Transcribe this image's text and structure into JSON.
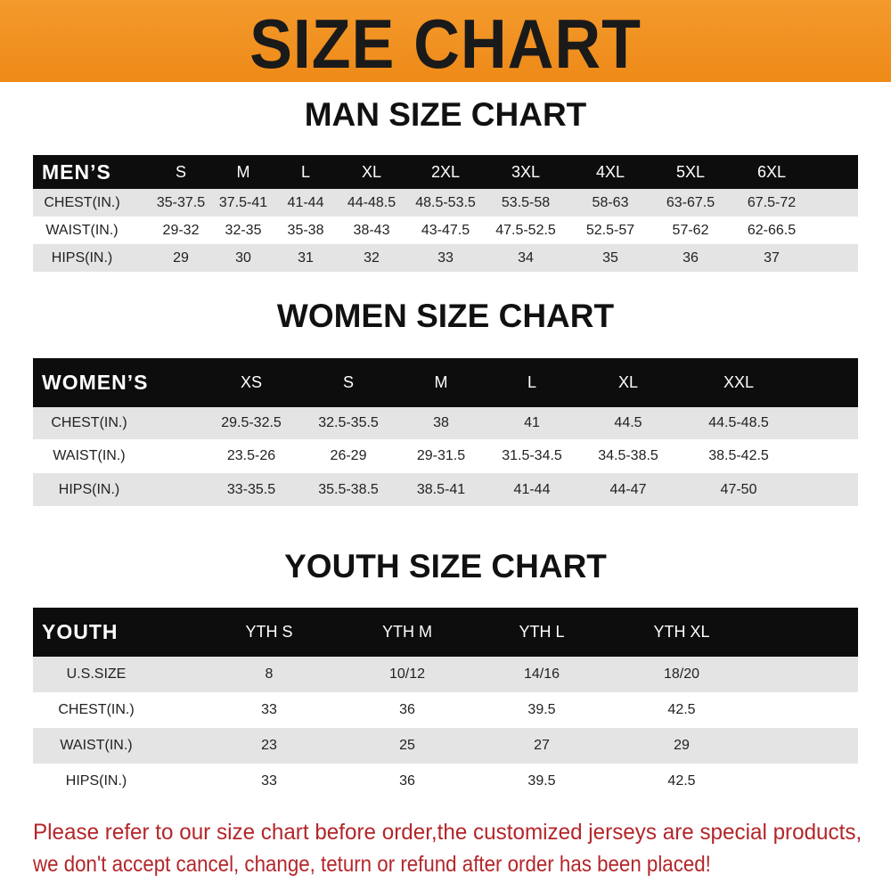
{
  "banner": {
    "title": "SIZE CHART",
    "color": "#f0901f"
  },
  "men": {
    "title": "MAN SIZE CHART",
    "headers": [
      "MEN’S",
      "S",
      "M",
      "L",
      "XL",
      "2XL",
      "3XL",
      "4XL",
      "5XL",
      "6XL"
    ],
    "rows": [
      [
        "CHEST(IN.)",
        "35-37.5",
        "37.5-41",
        "41-44",
        "44-48.5",
        "48.5-53.5",
        "53.5-58",
        "58-63",
        "63-67.5",
        "67.5-72"
      ],
      [
        "WAIST(IN.)",
        "29-32",
        "32-35",
        "35-38",
        "38-43",
        "43-47.5",
        "47.5-52.5",
        "52.5-57",
        "57-62",
        "62-66.5"
      ],
      [
        "HIPS(IN.)",
        "29",
        "30",
        "31",
        "32",
        "33",
        "34",
        "35",
        "36",
        "37"
      ]
    ]
  },
  "women": {
    "title": "WOMEN SIZE CHART",
    "headers": [
      "WOMEN’S",
      "XS",
      "S",
      "M",
      "L",
      "XL",
      "XXL"
    ],
    "rows": [
      [
        "CHEST(IN.)",
        "29.5-32.5",
        "32.5-35.5",
        "38",
        "41",
        "44.5",
        "44.5-48.5"
      ],
      [
        "WAIST(IN.)",
        "23.5-26",
        "26-29",
        "29-31.5",
        "31.5-34.5",
        "34.5-38.5",
        "38.5-42.5"
      ],
      [
        "HIPS(IN.)",
        "33-35.5",
        "35.5-38.5",
        "38.5-41",
        "41-44",
        "44-47",
        "47-50"
      ]
    ]
  },
  "youth": {
    "title": "YOUTH SIZE CHART",
    "headers": [
      "YOUTH",
      "YTH S",
      "YTH M",
      "YTH L",
      "YTH XL"
    ],
    "rows": [
      [
        "U.S.SIZE",
        "8",
        "10/12",
        "14/16",
        "18/20"
      ],
      [
        "CHEST(IN.)",
        "33",
        "36",
        "39.5",
        "42.5"
      ],
      [
        "WAIST(IN.)",
        "23",
        "25",
        "27",
        "29"
      ],
      [
        "HIPS(IN.)",
        "33",
        "36",
        "39.5",
        "42.5"
      ]
    ]
  },
  "footer": {
    "line1": "Please refer to our size chart before order,the customized jerseys are special products,",
    "line2": "we don't accept cancel, change, teturn or refund after order has been placed!",
    "color": "#b3262a"
  }
}
